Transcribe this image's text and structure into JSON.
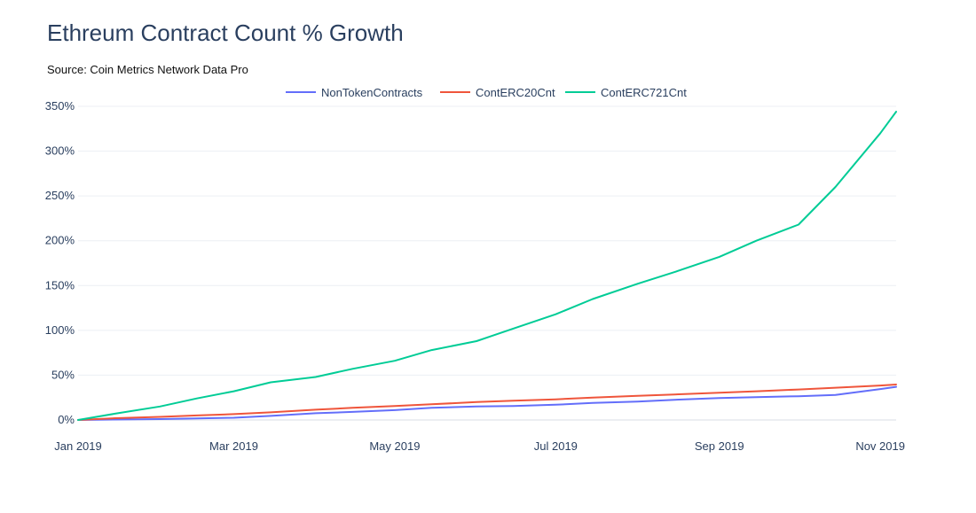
{
  "header": {
    "title": "Ethreum Contract Count % Growth",
    "subtitle": "Source: Coin Metrics Network Data Pro"
  },
  "chart_data": {
    "type": "line",
    "title": "Ethreum Contract Count % Growth",
    "subtitle": "Source: Coin Metrics Network Data Pro",
    "xlabel": "",
    "ylabel": "",
    "x_ticks": [
      "Jan 2019",
      "Mar 2019",
      "May 2019",
      "Jul 2019",
      "Sep 2019",
      "Nov 2019"
    ],
    "y_ticks": [
      "0%",
      "50%",
      "100%",
      "150%",
      "200%",
      "250%",
      "300%",
      "350%"
    ],
    "xlim": [
      "2019-01-01",
      "2019-11-07"
    ],
    "ylim": [
      0,
      350
    ],
    "grid": true,
    "legend": "top-center",
    "series": [
      {
        "name": "NonTokenContracts",
        "color": "#636efa",
        "x": [
          "2019-01-01",
          "2019-01-15",
          "2019-02-01",
          "2019-02-15",
          "2019-03-01",
          "2019-03-15",
          "2019-04-01",
          "2019-04-15",
          "2019-05-01",
          "2019-05-15",
          "2019-06-01",
          "2019-06-15",
          "2019-07-01",
          "2019-07-15",
          "2019-08-01",
          "2019-08-15",
          "2019-09-01",
          "2019-09-15",
          "2019-10-01",
          "2019-10-15",
          "2019-11-01",
          "2019-11-07"
        ],
        "values": [
          0,
          0.5,
          1,
          1.8,
          2.5,
          4.5,
          7.5,
          9,
          11,
          13.5,
          15,
          15.5,
          17,
          19,
          20.5,
          22.5,
          24.5,
          25.5,
          26.5,
          28,
          34.5,
          37
        ]
      },
      {
        "name": "ContERC20Cnt",
        "color": "#ef553b",
        "x": [
          "2019-01-01",
          "2019-01-15",
          "2019-02-01",
          "2019-02-15",
          "2019-03-01",
          "2019-03-15",
          "2019-04-01",
          "2019-04-15",
          "2019-05-01",
          "2019-05-15",
          "2019-06-01",
          "2019-06-15",
          "2019-07-01",
          "2019-07-15",
          "2019-08-01",
          "2019-08-15",
          "2019-09-01",
          "2019-09-15",
          "2019-10-01",
          "2019-10-15",
          "2019-11-01",
          "2019-11-07"
        ],
        "values": [
          0,
          2,
          3.5,
          5,
          6.5,
          8.5,
          11.5,
          13.5,
          15.5,
          17.5,
          20,
          21.5,
          23,
          25,
          27,
          28.5,
          30.5,
          32,
          34,
          36,
          38.5,
          39.5
        ]
      },
      {
        "name": "ContERC721Cnt",
        "color": "#00cc96",
        "x": [
          "2019-01-01",
          "2019-01-15",
          "2019-02-01",
          "2019-02-15",
          "2019-03-01",
          "2019-03-15",
          "2019-04-01",
          "2019-04-15",
          "2019-05-01",
          "2019-05-15",
          "2019-06-01",
          "2019-06-15",
          "2019-07-01",
          "2019-07-15",
          "2019-08-01",
          "2019-08-15",
          "2019-09-01",
          "2019-09-15",
          "2019-10-01",
          "2019-10-15",
          "2019-11-01",
          "2019-11-07"
        ],
        "values": [
          0,
          7,
          15,
          24,
          32,
          42,
          48,
          57,
          66,
          78,
          88,
          102,
          118,
          135,
          152,
          165,
          182,
          200,
          218,
          260,
          320,
          344
        ]
      }
    ]
  }
}
